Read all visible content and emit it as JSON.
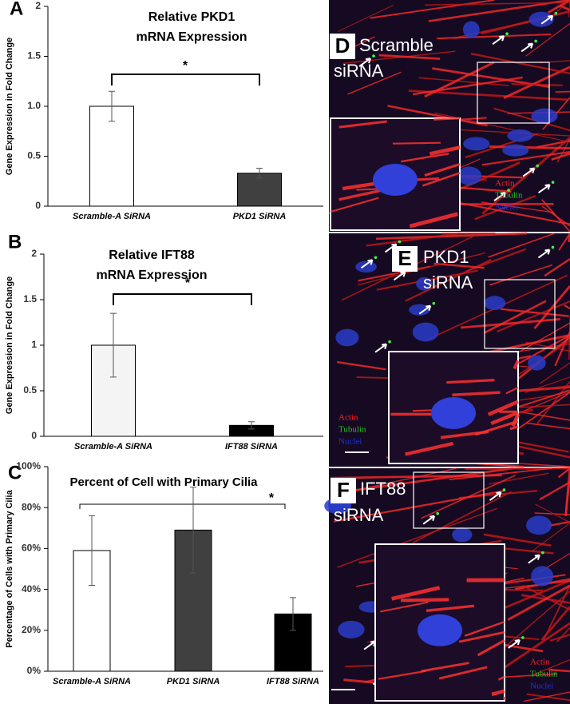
{
  "chart_data": [
    {
      "type": "bar",
      "panel_label": "A",
      "title": [
        "Relative PKD1",
        "mRNA Expression"
      ],
      "ylabel": "Gene Expression in Fold Change",
      "categories": [
        "Scramble-A SiRNA",
        "PKD1 SiRNA"
      ],
      "values": [
        1.0,
        0.33
      ],
      "errors": [
        0.15,
        0.05
      ],
      "colors": [
        "#ffffff",
        "#404040"
      ],
      "ylim": [
        0,
        2
      ],
      "yticks": [
        0,
        0.5,
        {
          "value": 1,
          "label": "1.0"
        },
        1.5,
        2
      ],
      "significance": "*"
    },
    {
      "type": "bar",
      "panel_label": "B",
      "title": [
        "Relative IFT88",
        "mRNA Expression"
      ],
      "ylabel": "Gene Expression in Fold Change",
      "categories": [
        "Scramble-A SiRNA",
        "IFT88 SiRNA"
      ],
      "values": [
        1.0,
        0.12
      ],
      "errors": [
        0.35,
        0.04
      ],
      "colors": [
        "#f4f4f4",
        "#000000"
      ],
      "ylim": [
        0,
        2
      ],
      "yticks": [
        0,
        0.5,
        1,
        1.5,
        2
      ],
      "significance": "*"
    },
    {
      "type": "bar",
      "panel_label": "C",
      "title": [
        "Percent of Cell with Primary Cilia"
      ],
      "ylabel": "Percentage of Cells with Primary Cilia",
      "categories": [
        "Scramble-A SiRNA",
        "PKD1 SiRNA",
        "IFT88 SiRNA"
      ],
      "values": [
        59,
        69,
        28
      ],
      "errors": [
        17,
        21,
        8
      ],
      "colors": [
        "#ffffff",
        "#404040",
        "#000000"
      ],
      "ylim": [
        0,
        100
      ],
      "yticks": [
        {
          "value": 0,
          "label": "0%"
        },
        {
          "value": 20,
          "label": "20%"
        },
        {
          "value": 40,
          "label": "40%"
        },
        {
          "value": 60,
          "label": "60%"
        },
        {
          "value": 80,
          "label": "80%"
        },
        {
          "value": 100,
          "label": "100%"
        }
      ],
      "significance": "*"
    }
  ],
  "panels": [
    {
      "letter": "D",
      "label": [
        "Scramble",
        "siRNA"
      ],
      "legend": [
        "Actin",
        "Tubulin",
        "Nuclei"
      ]
    },
    {
      "letter": "E",
      "label": [
        "PKD1",
        "siRNA"
      ],
      "legend": [
        "Actin",
        "Tubulin",
        "Nuclei"
      ]
    },
    {
      "letter": "F",
      "label": [
        "IFT88",
        "siRNA"
      ],
      "legend": [
        "Actin",
        "Tubulin",
        "Nuclei"
      ]
    }
  ]
}
